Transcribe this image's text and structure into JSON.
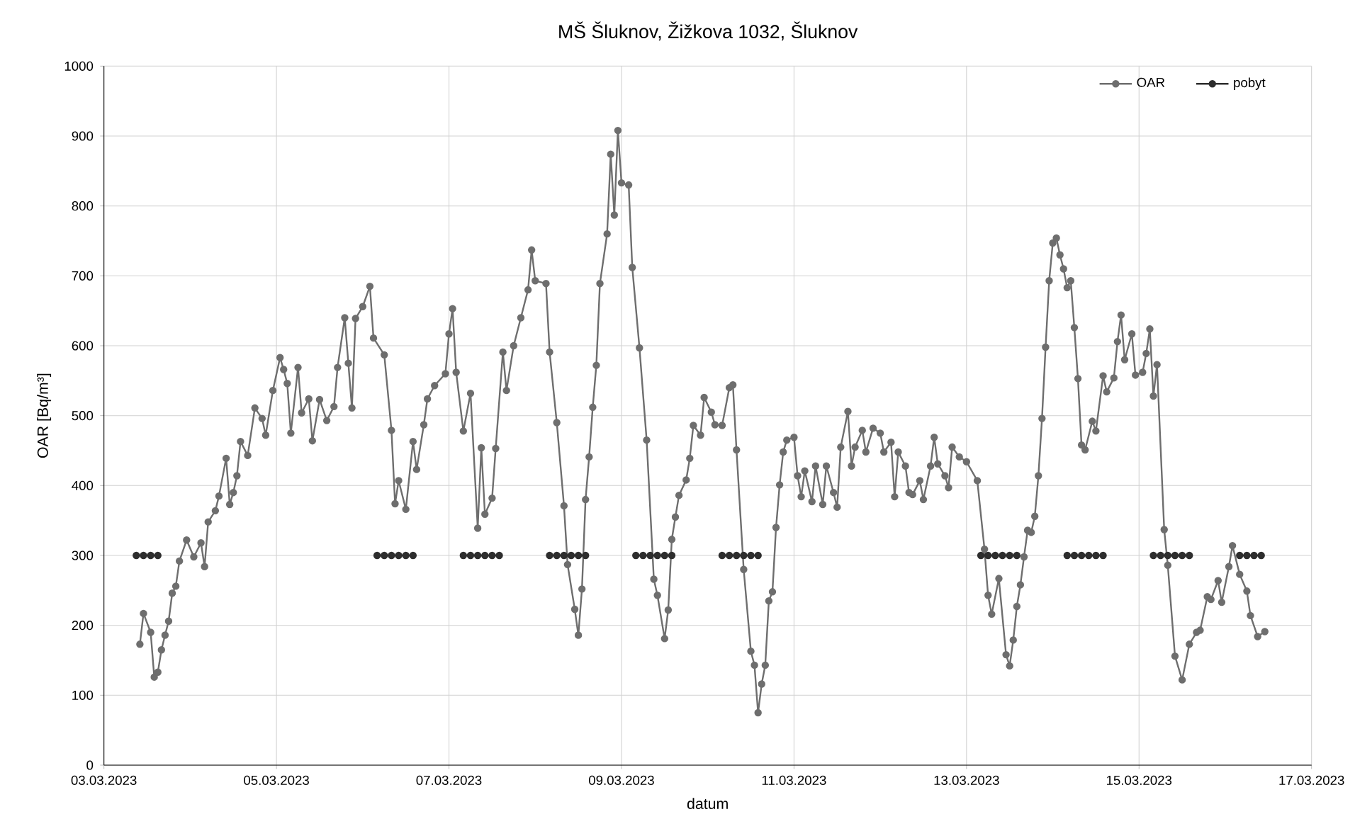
{
  "chart_data": {
    "type": "line",
    "title": "MŠ Šluknov, Žižkova 1032, Šluknov",
    "xlabel": "datum",
    "ylabel": "OAR [Bq/m³]",
    "xlim": [
      "2023-03-03",
      "2023-03-17"
    ],
    "xticks": [
      {
        "value": "2023-03-03",
        "label": "03.03.2023"
      },
      {
        "value": "2023-03-05",
        "label": "05.03.2023"
      },
      {
        "value": "2023-03-07",
        "label": "07.03.2023"
      },
      {
        "value": "2023-03-09",
        "label": "09.03.2023"
      },
      {
        "value": "2023-03-11",
        "label": "11.03.2023"
      },
      {
        "value": "2023-03-13",
        "label": "13.03.2023"
      },
      {
        "value": "2023-03-15",
        "label": "15.03.2023"
      },
      {
        "value": "2023-03-17",
        "label": "17.03.2023"
      }
    ],
    "ylim": [
      0,
      1000
    ],
    "yticks": [
      0,
      100,
      200,
      300,
      400,
      500,
      600,
      700,
      800,
      900,
      1000
    ],
    "grid": true,
    "legend": "top right",
    "marker": "circle",
    "line_style": "solid",
    "series": [
      {
        "name": "OAR",
        "color": "#6e6e6e",
        "x": [
          "2023-03-03T10:00",
          "2023-03-03T11:00",
          "2023-03-03T13:00",
          "2023-03-03T14:00",
          "2023-03-03T15:00",
          "2023-03-03T16:00",
          "2023-03-03T17:00",
          "2023-03-03T18:00",
          "2023-03-03T19:00",
          "2023-03-03T20:00",
          "2023-03-03T21:00",
          "2023-03-03T23:00",
          "2023-03-04T01:00",
          "2023-03-04T03:00",
          "2023-03-04T04:00",
          "2023-03-04T05:00",
          "2023-03-04T07:00",
          "2023-03-04T08:00",
          "2023-03-04T10:00",
          "2023-03-04T11:00",
          "2023-03-04T12:00",
          "2023-03-04T13:00",
          "2023-03-04T14:00",
          "2023-03-04T16:00",
          "2023-03-04T18:00",
          "2023-03-04T20:00",
          "2023-03-04T21:00",
          "2023-03-04T23:00",
          "2023-03-05T01:00",
          "2023-03-05T02:00",
          "2023-03-05T03:00",
          "2023-03-05T04:00",
          "2023-03-05T06:00",
          "2023-03-05T07:00",
          "2023-03-05T09:00",
          "2023-03-05T10:00",
          "2023-03-05T12:00",
          "2023-03-05T14:00",
          "2023-03-05T16:00",
          "2023-03-05T17:00",
          "2023-03-05T19:00",
          "2023-03-05T20:00",
          "2023-03-05T21:00",
          "2023-03-05T22:00",
          "2023-03-06T00:00",
          "2023-03-06T02:00",
          "2023-03-06T03:00",
          "2023-03-06T06:00",
          "2023-03-06T08:00",
          "2023-03-06T09:00",
          "2023-03-06T10:00",
          "2023-03-06T12:00",
          "2023-03-06T14:00",
          "2023-03-06T15:00",
          "2023-03-06T17:00",
          "2023-03-06T18:00",
          "2023-03-06T20:00",
          "2023-03-06T23:00",
          "2023-03-07T00:00",
          "2023-03-07T01:00",
          "2023-03-07T02:00",
          "2023-03-07T04:00",
          "2023-03-07T06:00",
          "2023-03-07T08:00",
          "2023-03-07T09:00",
          "2023-03-07T10:00",
          "2023-03-07T12:00",
          "2023-03-07T13:00",
          "2023-03-07T15:00",
          "2023-03-07T16:00",
          "2023-03-07T18:00",
          "2023-03-07T20:00",
          "2023-03-07T22:00",
          "2023-03-07T23:00",
          "2023-03-08T00:00",
          "2023-03-08T03:00",
          "2023-03-08T04:00",
          "2023-03-08T06:00",
          "2023-03-08T08:00",
          "2023-03-08T09:00",
          "2023-03-08T11:00",
          "2023-03-08T12:00",
          "2023-03-08T13:00",
          "2023-03-08T14:00",
          "2023-03-08T15:00",
          "2023-03-08T16:00",
          "2023-03-08T17:00",
          "2023-03-08T18:00",
          "2023-03-08T20:00",
          "2023-03-08T21:00",
          "2023-03-08T22:00",
          "2023-03-08T23:00",
          "2023-03-09T00:00",
          "2023-03-09T02:00",
          "2023-03-09T03:00",
          "2023-03-09T05:00",
          "2023-03-09T07:00",
          "2023-03-09T09:00",
          "2023-03-09T10:00",
          "2023-03-09T12:00",
          "2023-03-09T13:00",
          "2023-03-09T14:00",
          "2023-03-09T15:00",
          "2023-03-09T16:00",
          "2023-03-09T18:00",
          "2023-03-09T19:00",
          "2023-03-09T20:00",
          "2023-03-09T22:00",
          "2023-03-09T23:00",
          "2023-03-10T01:00",
          "2023-03-10T02:00",
          "2023-03-10T04:00",
          "2023-03-10T06:00",
          "2023-03-10T07:00",
          "2023-03-10T08:00",
          "2023-03-10T10:00",
          "2023-03-10T12:00",
          "2023-03-10T13:00",
          "2023-03-10T14:00",
          "2023-03-10T15:00",
          "2023-03-10T16:00",
          "2023-03-10T17:00",
          "2023-03-10T18:00",
          "2023-03-10T19:00",
          "2023-03-10T20:00",
          "2023-03-10T21:00",
          "2023-03-10T22:00",
          "2023-03-11T00:00",
          "2023-03-11T01:00",
          "2023-03-11T02:00",
          "2023-03-11T03:00",
          "2023-03-11T05:00",
          "2023-03-11T06:00",
          "2023-03-11T08:00",
          "2023-03-11T09:00",
          "2023-03-11T11:00",
          "2023-03-11T12:00",
          "2023-03-11T13:00",
          "2023-03-11T15:00",
          "2023-03-11T16:00",
          "2023-03-11T17:00",
          "2023-03-11T19:00",
          "2023-03-11T20:00",
          "2023-03-11T22:00",
          "2023-03-12T00:00",
          "2023-03-12T01:00",
          "2023-03-12T03:00",
          "2023-03-12T04:00",
          "2023-03-12T05:00",
          "2023-03-12T07:00",
          "2023-03-12T08:00",
          "2023-03-12T09:00",
          "2023-03-12T11:00",
          "2023-03-12T12:00",
          "2023-03-12T14:00",
          "2023-03-12T15:00",
          "2023-03-12T16:00",
          "2023-03-12T18:00",
          "2023-03-12T19:00",
          "2023-03-12T20:00",
          "2023-03-12T22:00",
          "2023-03-13T00:00",
          "2023-03-13T03:00",
          "2023-03-13T05:00",
          "2023-03-13T06:00",
          "2023-03-13T07:00",
          "2023-03-13T09:00",
          "2023-03-13T11:00",
          "2023-03-13T12:00",
          "2023-03-13T13:00",
          "2023-03-13T14:00",
          "2023-03-13T15:00",
          "2023-03-13T16:00",
          "2023-03-13T17:00",
          "2023-03-13T18:00",
          "2023-03-13T19:00",
          "2023-03-13T20:00",
          "2023-03-13T21:00",
          "2023-03-13T22:00",
          "2023-03-13T23:00",
          "2023-03-14T00:00",
          "2023-03-14T01:00",
          "2023-03-14T02:00",
          "2023-03-14T03:00",
          "2023-03-14T04:00",
          "2023-03-14T05:00",
          "2023-03-14T06:00",
          "2023-03-14T07:00",
          "2023-03-14T08:00",
          "2023-03-14T09:00",
          "2023-03-14T11:00",
          "2023-03-14T12:00",
          "2023-03-14T14:00",
          "2023-03-14T15:00",
          "2023-03-14T17:00",
          "2023-03-14T18:00",
          "2023-03-14T19:00",
          "2023-03-14T20:00",
          "2023-03-14T22:00",
          "2023-03-14T23:00",
          "2023-03-15T01:00",
          "2023-03-15T02:00",
          "2023-03-15T03:00",
          "2023-03-15T04:00",
          "2023-03-15T05:00",
          "2023-03-15T07:00",
          "2023-03-15T08:00",
          "2023-03-15T10:00",
          "2023-03-15T12:00",
          "2023-03-15T14:00",
          "2023-03-15T16:00",
          "2023-03-15T17:00",
          "2023-03-15T19:00",
          "2023-03-15T20:00",
          "2023-03-15T22:00",
          "2023-03-15T23:00",
          "2023-03-16T01:00",
          "2023-03-16T02:00",
          "2023-03-16T04:00",
          "2023-03-16T06:00",
          "2023-03-16T07:00",
          "2023-03-16T09:00",
          "2023-03-16T11:00"
        ],
        "values": [
          173,
          217,
          190,
          126,
          133,
          165,
          186,
          206,
          246,
          256,
          292,
          322,
          298,
          318,
          284,
          348,
          364,
          385,
          439,
          373,
          390,
          414,
          463,
          443,
          511,
          496,
          472,
          536,
          583,
          566,
          546,
          475,
          569,
          504,
          524,
          464,
          523,
          493,
          513,
          569,
          640,
          575,
          511,
          639,
          656,
          685,
          611,
          587,
          479,
          374,
          407,
          366,
          463,
          423,
          487,
          524,
          543,
          560,
          617,
          653,
          562,
          478,
          532,
          339,
          454,
          359,
          382,
          453,
          591,
          536,
          600,
          640,
          680,
          737,
          693,
          689,
          591,
          490,
          371,
          287,
          223,
          186,
          252,
          380,
          441,
          512,
          572,
          689,
          760,
          874,
          787,
          908,
          833,
          830,
          712,
          597,
          465,
          266,
          243,
          181,
          222,
          323,
          355,
          386,
          408,
          439,
          486,
          472,
          526,
          505,
          487,
          486,
          540,
          544,
          451,
          280,
          163,
          143,
          75,
          116,
          143,
          235,
          248,
          340,
          401,
          448,
          465,
          469,
          414,
          384,
          421,
          377,
          428,
          373,
          428,
          390,
          369,
          455,
          506,
          428,
          455,
          479,
          448,
          482,
          475,
          448,
          462,
          384,
          448,
          428,
          390,
          387,
          407,
          380,
          428,
          469,
          431,
          414,
          397,
          455,
          441,
          434,
          407,
          309,
          243,
          216,
          267,
          158,
          142,
          179,
          227,
          258,
          298,
          336,
          333,
          356,
          414,
          496,
          598,
          693,
          747,
          754,
          730,
          710,
          683,
          693,
          626,
          553,
          458,
          451,
          492,
          478,
          557,
          534,
          554,
          606,
          644,
          580,
          617,
          558,
          562,
          589,
          624,
          528,
          573,
          337,
          286,
          156,
          122,
          173,
          190,
          193,
          241,
          237,
          264,
          233,
          284,
          314,
          273,
          249,
          214,
          184,
          191
        ]
      },
      {
        "name": "pobyt",
        "color": "#2e2e2e",
        "x": [
          "2023-03-03T09:00",
          "2023-03-03T11:00",
          "2023-03-03T13:00",
          "2023-03-03T15:00",
          "2023-03-03T17:00",
          "2023-03-06T04:00",
          "2023-03-06T06:00",
          "2023-03-06T08:00",
          "2023-03-06T10:00",
          "2023-03-06T12:00",
          "2023-03-06T14:00",
          "2023-03-06T16:00",
          "2023-03-07T04:00",
          "2023-03-07T06:00",
          "2023-03-07T08:00",
          "2023-03-07T10:00",
          "2023-03-07T12:00",
          "2023-03-07T14:00",
          "2023-03-07T16:00",
          "2023-03-08T04:00",
          "2023-03-08T06:00",
          "2023-03-08T08:00",
          "2023-03-08T10:00",
          "2023-03-08T12:00",
          "2023-03-08T14:00",
          "2023-03-08T16:00",
          "2023-03-09T04:00",
          "2023-03-09T06:00",
          "2023-03-09T08:00",
          "2023-03-09T10:00",
          "2023-03-09T12:00",
          "2023-03-09T14:00",
          "2023-03-09T16:00",
          "2023-03-10T04:00",
          "2023-03-10T06:00",
          "2023-03-10T08:00",
          "2023-03-10T10:00",
          "2023-03-10T12:00",
          "2023-03-10T14:00",
          "2023-03-10T16:00",
          "2023-03-13T04:00",
          "2023-03-13T06:00",
          "2023-03-13T08:00",
          "2023-03-13T10:00",
          "2023-03-13T12:00",
          "2023-03-13T14:00",
          "2023-03-13T16:00",
          "2023-03-14T04:00",
          "2023-03-14T06:00",
          "2023-03-14T08:00",
          "2023-03-14T10:00",
          "2023-03-14T12:00",
          "2023-03-14T14:00",
          "2023-03-14T16:00",
          "2023-03-15T04:00",
          "2023-03-15T06:00",
          "2023-03-15T08:00",
          "2023-03-15T10:00",
          "2023-03-15T12:00",
          "2023-03-15T14:00",
          "2023-03-15T16:00",
          "2023-03-16T04:00",
          "2023-03-16T06:00",
          "2023-03-16T08:00",
          "2023-03-16T10:00"
        ],
        "values": [
          300,
          300,
          300,
          300,
          null,
          300,
          300,
          300,
          300,
          300,
          300,
          null,
          300,
          300,
          300,
          300,
          300,
          300,
          null,
          300,
          300,
          300,
          300,
          300,
          300,
          null,
          300,
          300,
          300,
          300,
          300,
          300,
          null,
          300,
          300,
          300,
          300,
          300,
          300,
          null,
          300,
          300,
          300,
          300,
          300,
          300,
          null,
          300,
          300,
          300,
          300,
          300,
          300,
          null,
          300,
          300,
          300,
          300,
          300,
          300,
          null,
          300,
          300,
          300,
          300
        ]
      }
    ]
  }
}
